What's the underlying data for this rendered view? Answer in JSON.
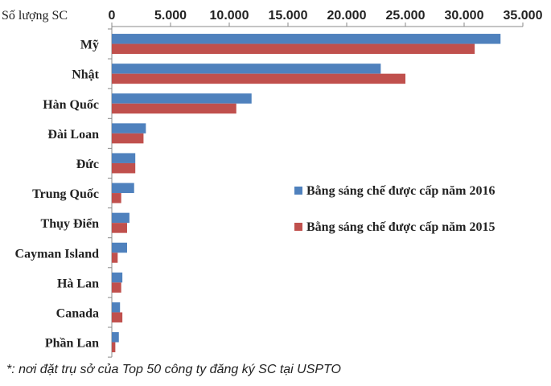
{
  "chart_data": {
    "type": "bar",
    "orientation": "horizontal",
    "ylabel": "Số lượng SC",
    "categories": [
      "Mỹ",
      "Nhật",
      "Hàn Quốc",
      "Đài Loan",
      "Đức",
      "Trung Quốc",
      "Thụy Điển",
      "Cayman Island",
      "Hà Lan",
      "Canada",
      "Phần Lan"
    ],
    "series": [
      {
        "name": "Bằng sáng chế được cấp năm 2016",
        "color": "#4f81bd",
        "values": [
          33100,
          22900,
          11900,
          2900,
          2000,
          1900,
          1500,
          1300,
          900,
          700,
          600
        ]
      },
      {
        "name": "Bằng sáng chế được cấp năm 2015",
        "color": "#c0504d",
        "values": [
          30900,
          25000,
          10600,
          2700,
          2000,
          800,
          1300,
          500,
          800,
          900,
          300
        ]
      }
    ],
    "xlim": [
      0,
      35000
    ],
    "xticks": [
      "0",
      "5.000",
      "10.000",
      "15.000",
      "20.000",
      "25.000",
      "30.000",
      "35.000"
    ],
    "xtick_values": [
      0,
      5000,
      10000,
      15000,
      20000,
      25000,
      30000,
      35000
    ],
    "grid": false,
    "legend_position": "right-middle"
  },
  "footnote": "*: nơi đặt trụ sở của Top 50 công ty đăng ký SC tại USPTO"
}
